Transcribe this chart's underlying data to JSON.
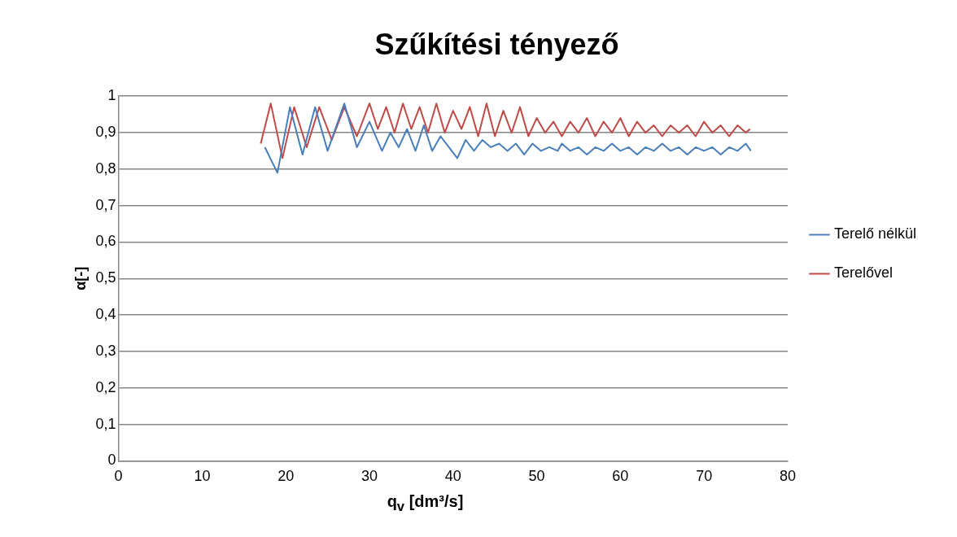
{
  "chart_data": {
    "type": "line",
    "title": "Szűkítési tényező",
    "xlabel": "q$_{v}$ [dm³/s]",
    "ylabel": "α[-]",
    "xlim": [
      0,
      80
    ],
    "xticks": [
      0,
      10,
      20,
      30,
      40,
      50,
      60,
      70,
      80
    ],
    "ylim": [
      0,
      1
    ],
    "yticks": [
      0,
      {
        "value": 0.1,
        "label": "0,1"
      },
      {
        "value": 0.2,
        "label": "0,2"
      },
      {
        "value": 0.3,
        "label": "0,3"
      },
      {
        "value": 0.4,
        "label": "0,4"
      },
      {
        "value": 0.5,
        "label": "0,5"
      },
      {
        "value": 0.6,
        "label": "0,6"
      },
      {
        "value": 0.7,
        "label": "0,7"
      },
      {
        "value": 0.8,
        "label": "0,8"
      },
      {
        "value": 0.9,
        "label": "0,9"
      },
      1
    ],
    "grid": "y",
    "legend": "right",
    "marker": "none",
    "series": [
      {
        "name": "Terelő nélkül",
        "color": "#4a7ebb",
        "x": [
          17.5,
          19,
          20.5,
          22,
          23.5,
          25,
          27,
          28.5,
          30,
          31.5,
          32.5,
          33.5,
          34.5,
          35.5,
          36.5,
          37.5,
          38.5,
          39.5,
          40.5,
          41.5,
          42.5,
          43.5,
          44.5,
          45.5,
          46.5,
          47.5,
          48.5,
          49.5,
          50.5,
          51.5,
          52.5,
          53,
          54,
          55,
          56,
          57,
          58,
          59,
          60,
          61,
          62,
          63,
          64,
          65,
          66,
          67,
          68,
          69,
          70,
          71,
          72,
          73,
          74,
          75,
          75.6
        ],
        "values": [
          0.86,
          0.79,
          0.97,
          0.84,
          0.97,
          0.85,
          0.98,
          0.86,
          0.93,
          0.85,
          0.9,
          0.86,
          0.91,
          0.85,
          0.92,
          0.85,
          0.89,
          0.86,
          0.83,
          0.88,
          0.85,
          0.88,
          0.86,
          0.87,
          0.85,
          0.87,
          0.84,
          0.87,
          0.85,
          0.86,
          0.85,
          0.87,
          0.85,
          0.86,
          0.84,
          0.86,
          0.85,
          0.87,
          0.85,
          0.86,
          0.84,
          0.86,
          0.85,
          0.87,
          0.85,
          0.86,
          0.84,
          0.86,
          0.85,
          0.86,
          0.84,
          0.86,
          0.85,
          0.87,
          0.85
        ]
      },
      {
        "name": "Terelővel",
        "color": "#be4b48",
        "x": [
          17,
          18.2,
          19.6,
          21,
          22.5,
          24,
          25.5,
          27,
          28.5,
          30,
          31,
          32,
          33,
          34,
          35,
          36,
          37,
          38,
          39,
          40,
          41,
          42,
          43,
          44,
          45,
          46,
          47,
          48,
          49,
          50,
          51,
          52,
          53,
          54,
          55,
          56,
          57,
          58,
          59,
          60,
          61,
          62,
          63,
          64,
          65,
          66,
          67,
          68,
          69,
          70,
          71,
          72,
          73,
          74,
          75,
          75.5
        ],
        "values": [
          0.87,
          0.98,
          0.83,
          0.97,
          0.86,
          0.97,
          0.88,
          0.97,
          0.89,
          0.98,
          0.91,
          0.97,
          0.9,
          0.98,
          0.91,
          0.97,
          0.9,
          0.98,
          0.9,
          0.96,
          0.91,
          0.97,
          0.89,
          0.98,
          0.89,
          0.96,
          0.9,
          0.97,
          0.89,
          0.94,
          0.9,
          0.93,
          0.89,
          0.93,
          0.9,
          0.94,
          0.89,
          0.93,
          0.9,
          0.94,
          0.89,
          0.93,
          0.9,
          0.92,
          0.89,
          0.92,
          0.9,
          0.92,
          0.89,
          0.93,
          0.9,
          0.92,
          0.89,
          0.92,
          0.9,
          0.91
        ]
      }
    ]
  }
}
